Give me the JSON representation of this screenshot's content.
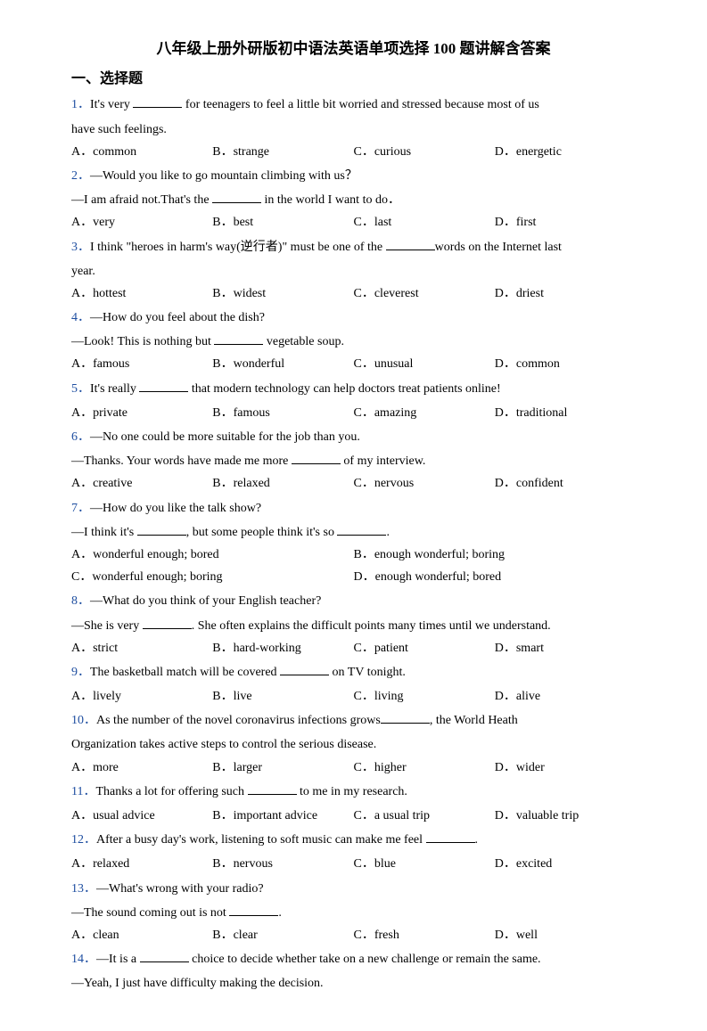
{
  "title": "八年级上册外研版初中语法英语单项选择 100 题讲解含答案",
  "section": "一、选择题",
  "questions": [
    {
      "num": "1．",
      "text_pre": "It's very ",
      "text_post": " for teenagers to feel a little bit worried and stressed because most of us",
      "cont": "have such feelings.",
      "opts": [
        "A．common",
        "B．strange",
        "C．curious",
        "D．energetic"
      ],
      "layout": "4"
    },
    {
      "num": "2．",
      "text_pre": "—Would you like to go mountain climbing with us？",
      "cont_pre": "—I am afraid not.That's the ",
      "cont_post": " in the world I want to do．",
      "opts": [
        "A．very",
        "B．best",
        "C．last",
        "D．first"
      ],
      "layout": "4"
    },
    {
      "num": "3．",
      "text_pre": "I think \"heroes in harm's way(逆行者)\" must be one of the ",
      "text_post": "words on the Internet last",
      "cont": "year.",
      "opts": [
        "A．hottest",
        "B．widest",
        "C．cleverest",
        "D．driest"
      ],
      "layout": "4"
    },
    {
      "num": "4．",
      "text_pre": "—How do you feel about the dish?",
      "cont_pre": "—Look! This is nothing but ",
      "cont_post": " vegetable soup.",
      "opts": [
        "A．famous",
        "B．wonderful",
        "C．unusual",
        "D．common"
      ],
      "layout": "4"
    },
    {
      "num": "5．",
      "text_pre": "It's really ",
      "text_post": " that modern technology can help doctors treat patients online!",
      "opts": [
        "A．private",
        "B．famous",
        "C．amazing",
        "D．traditional"
      ],
      "layout": "4"
    },
    {
      "num": "6．",
      "text_pre": "—No one could be more suitable for the job than you.",
      "cont_pre": "—Thanks. Your words have made me more ",
      "cont_post": " of my interview.",
      "opts": [
        "A．creative",
        "B．relaxed",
        "C．nervous",
        "D．confident"
      ],
      "layout": "4"
    },
    {
      "num": "7．",
      "text_pre": "—How do you like the talk show?",
      "cont_pre": "—I think it's ",
      "cont_mid": ", but some people think it's so ",
      "cont_post": ".",
      "opts": [
        "A．wonderful enough; bored",
        "B．enough wonderful; boring",
        "C．wonderful enough; boring",
        "D．enough wonderful; bored"
      ],
      "layout": "2"
    },
    {
      "num": "8．",
      "text_pre": "—What do you think of your English teacher?",
      "cont_pre": "—She is very ",
      "cont_post": ". She often explains the difficult points many times until we understand.",
      "opts": [
        "A．strict",
        "B．hard-working",
        "C．patient",
        "D．smart"
      ],
      "layout": "4"
    },
    {
      "num": "9．",
      "text_pre": "The basketball match will be covered ",
      "text_post": " on TV tonight.",
      "opts": [
        "A．lively",
        "B．live",
        "C．living",
        "D．alive"
      ],
      "layout": "4"
    },
    {
      "num": "10．",
      "text_pre": "As the number of the novel coronavirus infections grows",
      "text_post": ", the World Heath",
      "cont": "Organization takes active steps to control the serious disease.",
      "opts": [
        "A．more",
        "B．larger",
        "C．higher",
        "D．wider"
      ],
      "layout": "4"
    },
    {
      "num": "11．",
      "text_pre": "Thanks a lot for offering such ",
      "text_post": " to me in my research.",
      "opts": [
        "A．usual advice",
        "B．important advice",
        "C．a usual trip",
        "D．valuable trip"
      ],
      "layout": "4"
    },
    {
      "num": "12．",
      "text_pre": "After a busy day's work, listening to soft music can make me feel ",
      "text_post": ".",
      "opts": [
        "A．relaxed",
        "B．nervous",
        "C．blue",
        "D．excited"
      ],
      "layout": "4"
    },
    {
      "num": "13．",
      "text_pre": "—What's wrong with your radio?",
      "cont_pre": "—The sound coming out is not ",
      "cont_post": ".",
      "opts": [
        "A．clean",
        "B．clear",
        "C．fresh",
        "D．well"
      ],
      "layout": "4"
    },
    {
      "num": "14．",
      "text_pre": "—It is a ",
      "text_post": " choice to decide whether take on a new challenge or remain the same.",
      "cont": "—Yeah, I just have difficulty making the decision."
    }
  ]
}
